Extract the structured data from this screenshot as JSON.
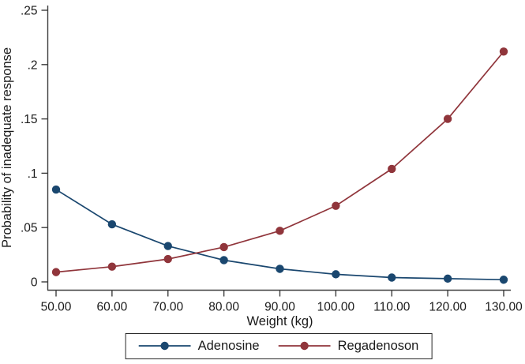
{
  "figure": {
    "background_color": "#ffffff",
    "text_color": "#1a1a1a",
    "axis_color": "#3d3d3d"
  },
  "chart_data": {
    "type": "line",
    "title": "",
    "xlabel": "Weight (kg)",
    "ylabel": "Probability of inadequate response",
    "grid": false,
    "legend_position": "bottom-center",
    "xlim": [
      50,
      130
    ],
    "ylim": [
      0,
      0.25
    ],
    "x": [
      50,
      60,
      70,
      80,
      90,
      100,
      110,
      120,
      130
    ],
    "xtick_labels": [
      "50.00",
      "60.00",
      "70.00",
      "80.00",
      "90.00",
      "100.00",
      "110.00",
      "120.00",
      "130.00"
    ],
    "ytick_values": [
      0,
      0.05,
      0.1,
      0.15,
      0.2,
      0.25
    ],
    "ytick_labels": [
      "0",
      ".05",
      ".1",
      ".15",
      ".2",
      ".25"
    ],
    "series": [
      {
        "name": "Adenosine",
        "color": "#1a476f",
        "values": [
          0.085,
          0.053,
          0.033,
          0.02,
          0.012,
          0.007,
          0.004,
          0.003,
          0.002
        ]
      },
      {
        "name": "Regadenoson",
        "color": "#90353b",
        "values": [
          0.009,
          0.014,
          0.021,
          0.032,
          0.047,
          0.07,
          0.104,
          0.15,
          0.212
        ]
      }
    ]
  }
}
